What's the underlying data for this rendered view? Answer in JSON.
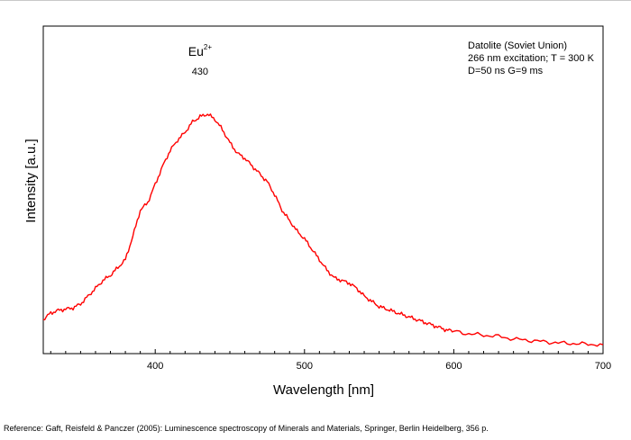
{
  "chart_data": {
    "type": "line",
    "xlabel": "Wavelength [nm]",
    "ylabel": "Intensity [a.u.]",
    "xlim": [
      325,
      700
    ],
    "ylim": [
      0,
      1
    ],
    "xticks": [
      400,
      500,
      600,
      700
    ],
    "grid": false,
    "series": [
      {
        "color": "#ff0000",
        "x": [
          325,
          330,
          335,
          340,
          345,
          350,
          355,
          360,
          365,
          370,
          375,
          380,
          385,
          390,
          395,
          400,
          405,
          410,
          415,
          420,
          425,
          430,
          435,
          440,
          445,
          450,
          455,
          460,
          465,
          470,
          475,
          480,
          485,
          490,
          495,
          500,
          505,
          510,
          515,
          520,
          525,
          530,
          535,
          540,
          545,
          550,
          555,
          560,
          565,
          570,
          575,
          580,
          585,
          590,
          595,
          600,
          610,
          620,
          630,
          640,
          650,
          660,
          670,
          680,
          690,
          700
        ],
        "y": [
          0.1,
          0.125,
          0.135,
          0.14,
          0.145,
          0.16,
          0.19,
          0.22,
          0.25,
          0.27,
          0.3,
          0.33,
          0.42,
          0.52,
          0.55,
          0.62,
          0.69,
          0.75,
          0.79,
          0.82,
          0.86,
          0.88,
          0.89,
          0.87,
          0.83,
          0.78,
          0.74,
          0.72,
          0.69,
          0.66,
          0.63,
          0.58,
          0.52,
          0.48,
          0.44,
          0.41,
          0.37,
          0.33,
          0.29,
          0.26,
          0.25,
          0.24,
          0.22,
          0.19,
          0.17,
          0.15,
          0.14,
          0.13,
          0.12,
          0.11,
          0.1,
          0.09,
          0.08,
          0.07,
          0.06,
          0.055,
          0.045,
          0.04,
          0.035,
          0.025,
          0.02,
          0.015,
          0.01,
          0.008,
          0.005,
          0.003
        ]
      }
    ],
    "annotations": {
      "peak_ion": "Eu",
      "peak_ion_charge": "2+",
      "peak_ion_at_x": 430,
      "peak_wavelength": "430",
      "info_lines": [
        "Datolite (Soviet Union)",
        "266 nm excitation; T = 300 K",
        "D=50 ns G=9 ms"
      ]
    }
  },
  "footer": {
    "reference": "Reference: Gaft, Reisfeld & Panczer (2005): Luminescence spectroscopy of Minerals and Materials, Springer, Berlin Heidelberg, 356 p."
  }
}
